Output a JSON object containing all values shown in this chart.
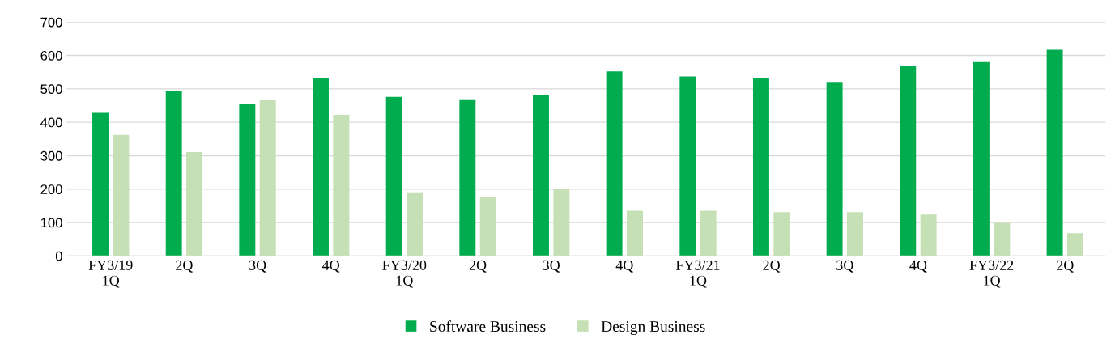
{
  "chart_data": {
    "type": "bar",
    "categories": [
      "FY3/19\n1Q",
      "2Q",
      "3Q",
      "4Q",
      "FY3/20\n1Q",
      "2Q",
      "3Q",
      "4Q",
      "FY3/21\n1Q",
      "2Q",
      "3Q",
      "4Q",
      "FY3/22\n1Q",
      "2Q"
    ],
    "series": [
      {
        "name": "Software Business",
        "color": "#00ac4e",
        "values": [
          428,
          495,
          455,
          532,
          476,
          469,
          480,
          552,
          537,
          533,
          521,
          570,
          580,
          617
        ]
      },
      {
        "name": "Design Business",
        "color": "#c5e0b4",
        "values": [
          362,
          311,
          466,
          422,
          190,
          175,
          200,
          135,
          135,
          131,
          131,
          124,
          99,
          68
        ]
      }
    ],
    "ylim": [
      0,
      700
    ],
    "yticks": [
      0,
      100,
      200,
      300,
      400,
      500,
      600,
      700
    ],
    "grid": "y",
    "legend": "bottom"
  }
}
